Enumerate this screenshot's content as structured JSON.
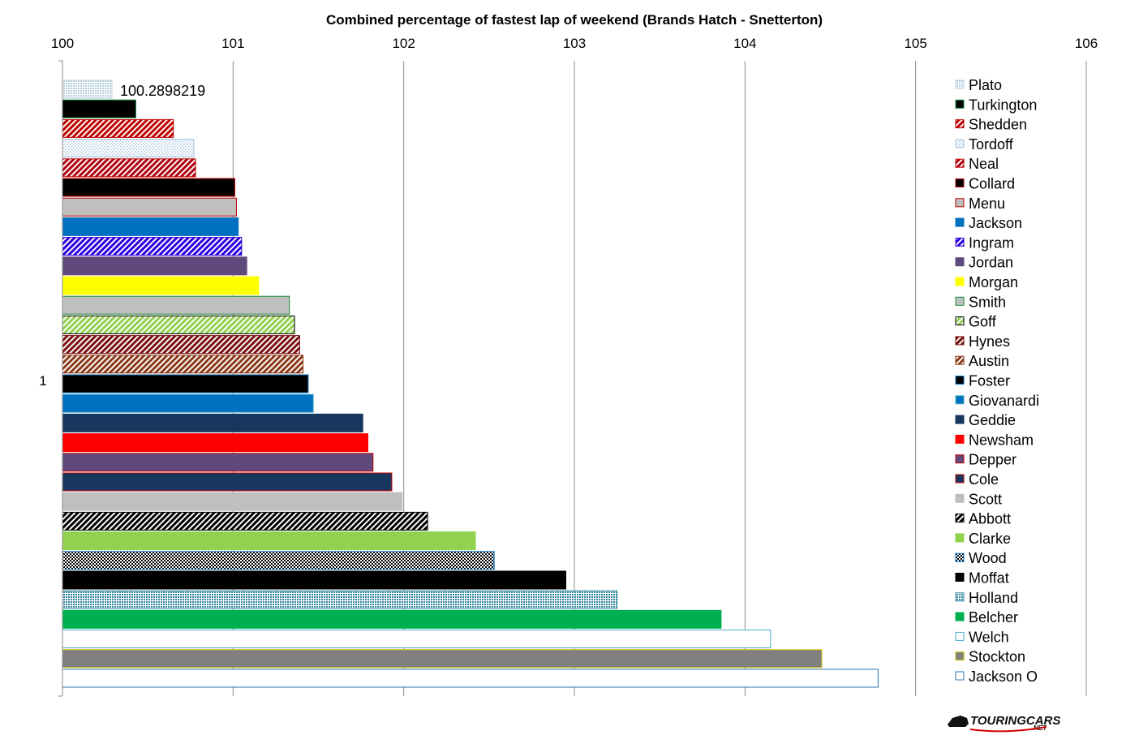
{
  "chart_data": {
    "type": "bar",
    "orientation": "horizontal",
    "title": "Combined percentage of fastest lap of weekend (Brands Hatch - Snetterton)",
    "xlabel": "",
    "ylabel": "",
    "xlim": [
      100,
      106
    ],
    "x_ticks": [
      "100",
      "101",
      "102",
      "103",
      "104",
      "105",
      "106"
    ],
    "categories": [
      "1"
    ],
    "grid": "vertical",
    "legend_position": "right",
    "data_label": "100.2898219",
    "series": [
      {
        "name": "Plato",
        "value": 100.2898219,
        "fill": "#b7cfe0",
        "pattern": "dots",
        "border": "#b7cfe0"
      },
      {
        "name": "Turkington",
        "value": 100.43,
        "fill": "#000000",
        "pattern": "solid",
        "border": "#1a8a3a"
      },
      {
        "name": "Shedden",
        "value": 100.65,
        "fill": "#c00000",
        "pattern": "diag",
        "border": "#c00000"
      },
      {
        "name": "Tordoff",
        "value": 100.77,
        "fill": "#a9c4dc",
        "pattern": "finedots",
        "border": "#a9c4dc"
      },
      {
        "name": "Neal",
        "value": 100.78,
        "fill": "#b00010",
        "pattern": "diag",
        "border": "#c00000"
      },
      {
        "name": "Collard",
        "value": 101.01,
        "fill": "#000000",
        "pattern": "solid",
        "border": "#c00000"
      },
      {
        "name": "Menu",
        "value": 101.02,
        "fill": "#bfbfbf",
        "pattern": "solid",
        "border": "#c00000"
      },
      {
        "name": "Jackson",
        "value": 101.03,
        "fill": "#0070c0",
        "pattern": "solid",
        "border": "#0070c0"
      },
      {
        "name": "Ingram",
        "value": 101.05,
        "fill": "#2d00e0",
        "pattern": "diag",
        "border": "#2d00e0"
      },
      {
        "name": "Jordan",
        "value": 101.08,
        "fill": "#604a7b",
        "pattern": "solid",
        "border": "#604a7b"
      },
      {
        "name": "Morgan",
        "value": 101.15,
        "fill": "#ffff00",
        "pattern": "solid",
        "border": "#ffff00"
      },
      {
        "name": "Smith",
        "value": 101.33,
        "fill": "#bfbfbf",
        "pattern": "solid",
        "border": "#1a8a3a"
      },
      {
        "name": "Goff",
        "value": 101.36,
        "fill": "#92d050",
        "pattern": "diag",
        "border": "#000000"
      },
      {
        "name": "Hynes",
        "value": 101.39,
        "fill": "#7b1010",
        "pattern": "diag",
        "border": "#7b1010"
      },
      {
        "name": "Austin",
        "value": 101.41,
        "fill": "#8b3a1a",
        "pattern": "diag",
        "border": "#8b3a1a"
      },
      {
        "name": "Foster",
        "value": 101.44,
        "fill": "#000000",
        "pattern": "solid",
        "border": "#0070c0"
      },
      {
        "name": "Giovanardi",
        "value": 101.47,
        "fill": "#0070c0",
        "pattern": "solid",
        "border": "#4bacc6"
      },
      {
        "name": "Geddie",
        "value": 101.76,
        "fill": "#17375e",
        "pattern": "solid",
        "border": "#17375e"
      },
      {
        "name": "Newsham",
        "value": 101.79,
        "fill": "#ff0000",
        "pattern": "solid",
        "border": "#ff0000"
      },
      {
        "name": "Depper",
        "value": 101.82,
        "fill": "#604a7b",
        "pattern": "solid",
        "border": "#c00000"
      },
      {
        "name": "Cole",
        "value": 101.93,
        "fill": "#17375e",
        "pattern": "solid",
        "border": "#c00000"
      },
      {
        "name": "Scott",
        "value": 101.99,
        "fill": "#bfbfbf",
        "pattern": "solid",
        "border": "#bfbfbf"
      },
      {
        "name": "Abbott",
        "value": 102.14,
        "fill": "#000000",
        "pattern": "diag",
        "border": "#000000"
      },
      {
        "name": "Clarke",
        "value": 102.42,
        "fill": "#92d050",
        "pattern": "solid",
        "border": "#92d050"
      },
      {
        "name": "Wood",
        "value": 102.53,
        "fill": "#000000",
        "pattern": "check",
        "border": "#0070c0"
      },
      {
        "name": "Moffat",
        "value": 102.95,
        "fill": "#000000",
        "pattern": "solid",
        "border": "#000000"
      },
      {
        "name": "Holland",
        "value": 103.25,
        "fill": "#31859c",
        "pattern": "dots",
        "border": "#31859c"
      },
      {
        "name": "Belcher",
        "value": 103.86,
        "fill": "#00b050",
        "pattern": "solid",
        "border": "#00b050"
      },
      {
        "name": "Welch",
        "value": 104.15,
        "fill": "#ffffff",
        "pattern": "solid",
        "border": "#4bacc6"
      },
      {
        "name": "Stockton",
        "value": 104.45,
        "fill": "#808080",
        "pattern": "solid",
        "border": "#d4c000"
      },
      {
        "name": "Jackson O",
        "value": 104.78,
        "fill": "#ffffff",
        "pattern": "solid",
        "border": "#2e75b6"
      }
    ]
  },
  "branding": {
    "logo_main": "TOURINGCARS",
    "logo_suffix": ".NET",
    "logo_accent_color": "#d40000"
  }
}
